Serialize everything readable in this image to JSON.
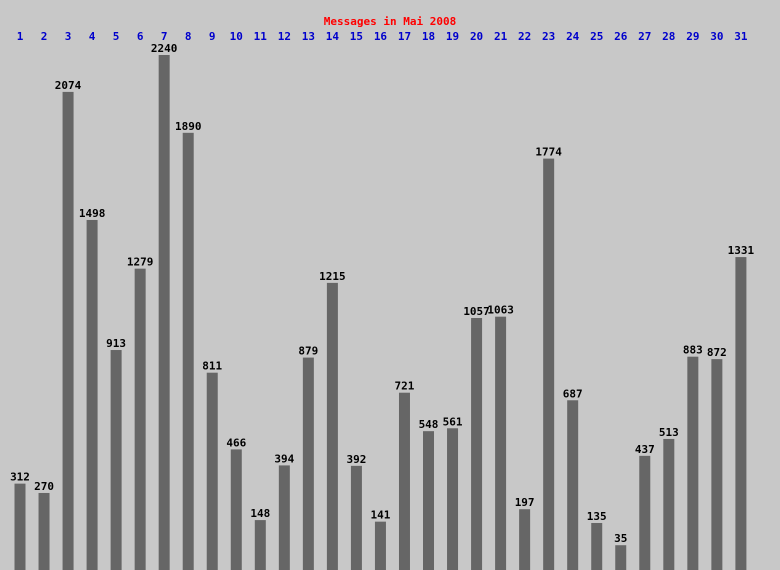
{
  "chart_data": {
    "type": "bar",
    "title": "Messages in Mai 2008",
    "categories": [
      "1",
      "2",
      "3",
      "4",
      "5",
      "6",
      "7",
      "8",
      "9",
      "10",
      "11",
      "12",
      "13",
      "14",
      "15",
      "16",
      "17",
      "18",
      "19",
      "20",
      "21",
      "22",
      "23",
      "24",
      "25",
      "26",
      "27",
      "28",
      "29",
      "30",
      "31"
    ],
    "values": [
      312,
      270,
      2074,
      1498,
      913,
      1279,
      2240,
      1890,
      811,
      466,
      148,
      394,
      879,
      1215,
      392,
      141,
      721,
      548,
      561,
      1057,
      1063,
      197,
      1774,
      687,
      135,
      35,
      437,
      513,
      883,
      872,
      1331
    ],
    "color": "#666666"
  }
}
